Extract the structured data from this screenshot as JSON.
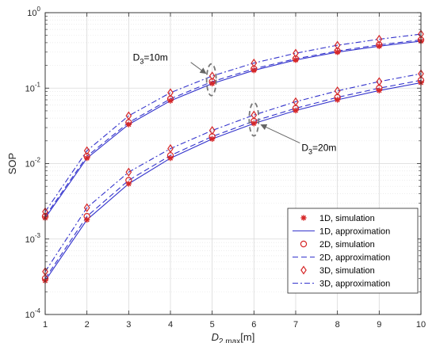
{
  "chart_data": {
    "type": "line",
    "xlabel": {
      "main": "D",
      "sub": "2,max",
      "unit": "[m]"
    },
    "ylabel": "SOP",
    "x": [
      1,
      2,
      3,
      4,
      5,
      6,
      7,
      8,
      9,
      10
    ],
    "xlim": [
      1,
      10
    ],
    "ylim": [
      0.0001,
      1
    ],
    "yscale": "log",
    "x_ticks": [
      "1",
      "2",
      "3",
      "4",
      "5",
      "6",
      "7",
      "8",
      "9",
      "10"
    ],
    "y_ticks": [
      {
        "value": 1,
        "base": "10",
        "exp": "0"
      },
      {
        "value": 0.1,
        "base": "10",
        "exp": "-1"
      },
      {
        "value": 0.01,
        "base": "10",
        "exp": "-2"
      },
      {
        "value": 0.001,
        "base": "10",
        "exp": "-3"
      },
      {
        "value": 0.0001,
        "base": "10",
        "exp": "-4"
      }
    ],
    "grid": true,
    "minor_grid": true,
    "legend_position": "bottom-right",
    "legend": [
      {
        "label": "1D, simulation",
        "kind": "marker",
        "marker": "asterisk",
        "color": "#d62728"
      },
      {
        "label": "1D, approximation",
        "kind": "line",
        "dash": "solid",
        "color": "#3333cc"
      },
      {
        "label": "2D, simulation",
        "kind": "marker",
        "marker": "circle",
        "color": "#d62728"
      },
      {
        "label": "2D, approximation",
        "kind": "line",
        "dash": "dashed",
        "color": "#3333cc"
      },
      {
        "label": "3D, simulation",
        "kind": "marker",
        "marker": "diamond",
        "color": "#d62728"
      },
      {
        "label": "3D, approximation",
        "kind": "line",
        "dash": "dashdot",
        "color": "#3333cc"
      }
    ],
    "groups": [
      {
        "annotation": {
          "main": "D",
          "sub": "3",
          "rest": "=10m"
        },
        "series": [
          {
            "dim": "1D",
            "values": [
              0.0019,
              0.0118,
              0.033,
              0.068,
              0.115,
              0.172,
              0.236,
              0.3,
              0.36,
              0.42
            ]
          },
          {
            "dim": "2D",
            "values": [
              0.002,
              0.0125,
              0.035,
              0.072,
              0.122,
              0.18,
              0.245,
              0.31,
              0.375,
              0.435
            ]
          },
          {
            "dim": "3D",
            "values": [
              0.0023,
              0.0148,
              0.043,
              0.087,
              0.145,
              0.215,
              0.29,
              0.37,
              0.445,
              0.52
            ]
          }
        ]
      },
      {
        "annotation": {
          "main": "D",
          "sub": "3",
          "rest": "=20m"
        },
        "series": [
          {
            "dim": "1D",
            "values": [
              0.00028,
              0.0018,
              0.0054,
              0.0118,
              0.0212,
              0.034,
              0.0505,
              0.07,
              0.093,
              0.118
            ]
          },
          {
            "dim": "2D",
            "values": [
              0.0003,
              0.002,
              0.006,
              0.0128,
              0.0228,
              0.0365,
              0.054,
              0.0755,
              0.1,
              0.127
            ]
          },
          {
            "dim": "3D",
            "values": [
              0.00037,
              0.0026,
              0.0077,
              0.0158,
              0.0275,
              0.044,
              0.066,
              0.092,
              0.122,
              0.155
            ]
          }
        ]
      }
    ]
  }
}
